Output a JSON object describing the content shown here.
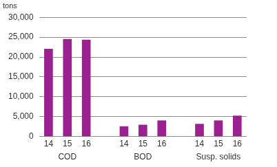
{
  "chart_data": {
    "type": "bar",
    "y_label": "tons",
    "color": "#9b2191",
    "grid": true,
    "groups": [
      {
        "name": "COD",
        "categories": [
          "14",
          "15",
          "16"
        ],
        "values": [
          22000,
          24500,
          24300
        ]
      },
      {
        "name": "BOD",
        "categories": [
          "14",
          "15",
          "16"
        ],
        "values": [
          2500,
          2900,
          4000
        ]
      },
      {
        "name": "Susp. solids",
        "categories": [
          "14",
          "15",
          "16"
        ],
        "values": [
          3100,
          4000,
          5200
        ]
      }
    ],
    "ylim": [
      0,
      30000
    ],
    "yticks": [
      0,
      {
        "value": 5000,
        "label": "5,000"
      },
      {
        "value": 10000,
        "label": "10,000"
      },
      {
        "value": 15000,
        "label": "15,000"
      },
      {
        "value": 20000,
        "label": "20,000"
      },
      {
        "value": 25000,
        "label": "25,000"
      },
      {
        "value": 30000,
        "label": "30,000"
      }
    ]
  }
}
